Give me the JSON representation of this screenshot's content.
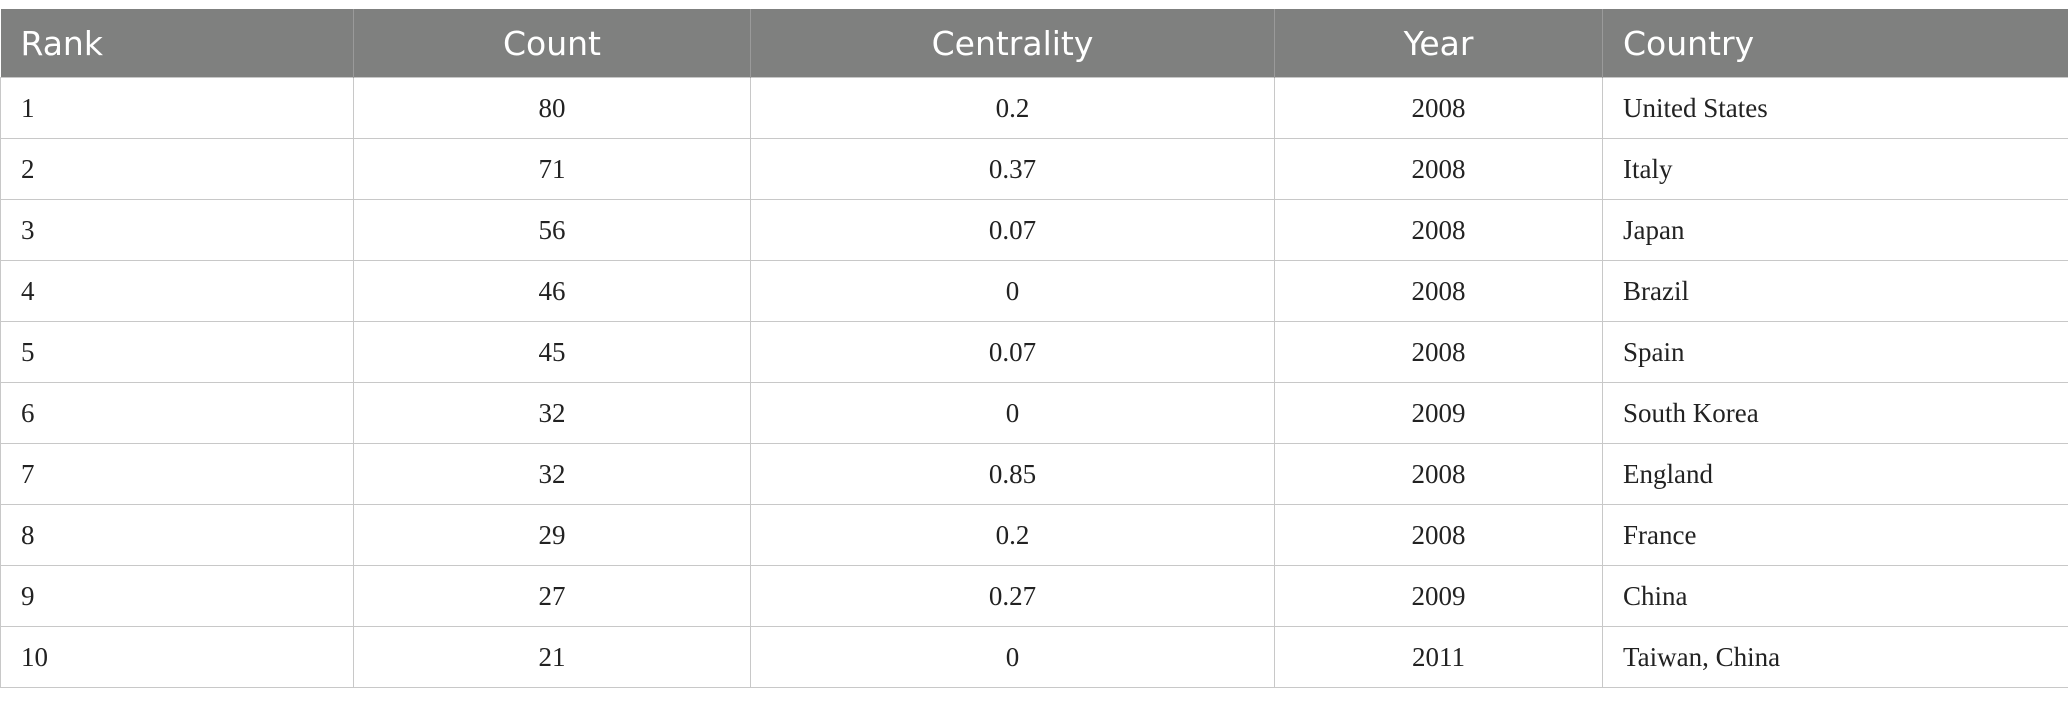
{
  "table": {
    "header": [
      "Rank",
      "Count",
      "Centrality",
      "Year",
      "Country"
    ],
    "rows": [
      [
        1,
        80,
        0.2,
        2008,
        "United States"
      ],
      [
        2,
        71,
        0.37,
        2008,
        "Italy"
      ],
      [
        3,
        56,
        0.07,
        2008,
        "Japan"
      ],
      [
        4,
        46,
        0,
        2008,
        "Brazil"
      ],
      [
        5,
        45,
        0.07,
        2008,
        "Spain"
      ],
      [
        6,
        32,
        0,
        2009,
        "South Korea"
      ],
      [
        7,
        32,
        0.85,
        2008,
        "England"
      ],
      [
        8,
        29,
        0.2,
        2008,
        "France"
      ],
      [
        9,
        27,
        0.27,
        2009,
        "China"
      ],
      [
        10,
        21,
        0,
        2011,
        "Taiwan, China"
      ]
    ]
  }
}
